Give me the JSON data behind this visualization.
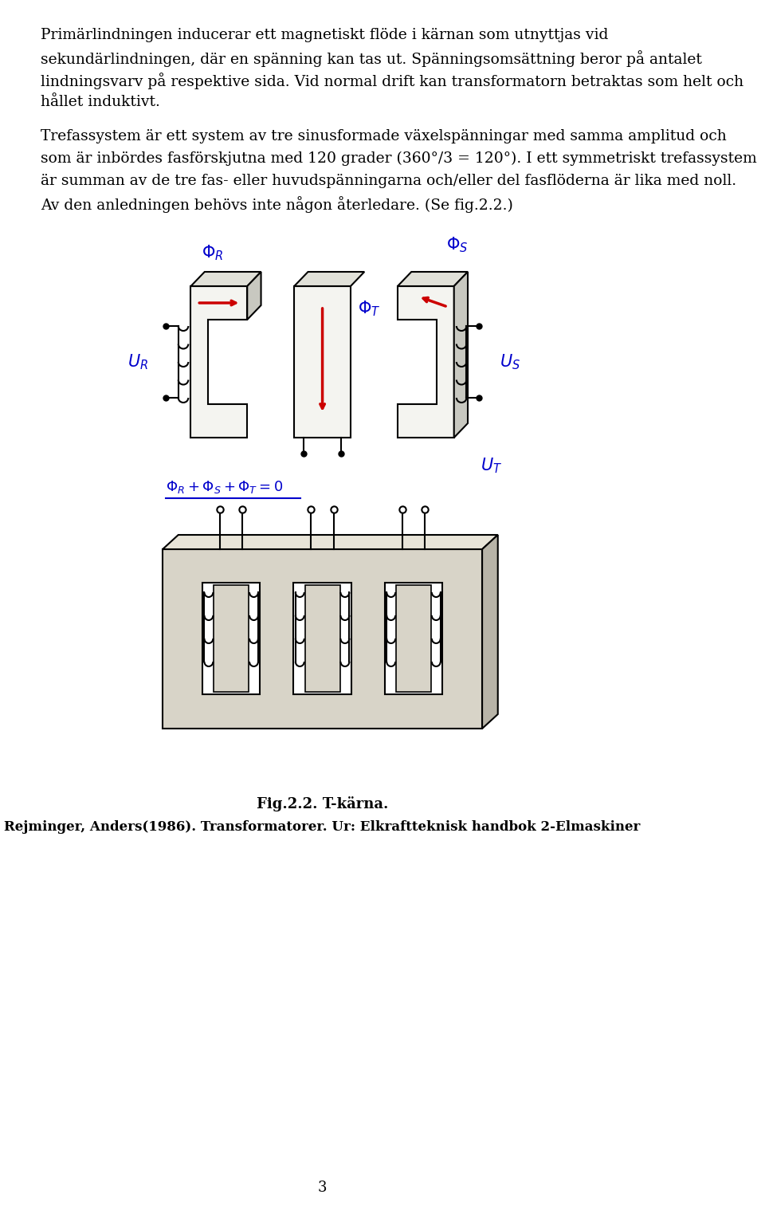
{
  "bg_color": "#ffffff",
  "text_color": "#000000",
  "blue_color": "#0000cc",
  "red_color": "#cc0000",
  "page_width": 9.6,
  "page_height": 15.28,
  "fig_caption_line1": "Fig.2.2. T-kärna.",
  "fig_caption_line2": "Rejminger, Anders(1986). Transformatorer. Ur: Elkraftteknisk handbok 2-Elmaskiner",
  "page_number": "3"
}
